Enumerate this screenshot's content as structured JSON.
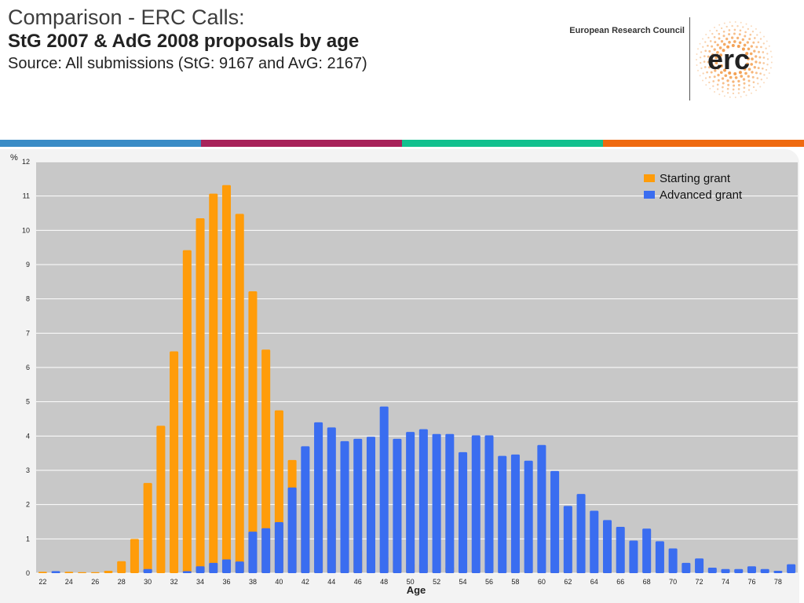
{
  "header": {
    "title_line1": "Comparison - ERC Calls:",
    "title_line2": "StG 2007 & AdG 2008 proposals by age",
    "title_line3": "Source: All submissions (StG: 9167 and AvG: 2167)",
    "org_name": "European Research Council",
    "logo_text": "erc"
  },
  "colors": {
    "stripe_blue": "#3a8cc6",
    "stripe_magenta": "#a8235a",
    "stripe_teal": "#12c18f",
    "stripe_orange": "#ef6a10",
    "starting": "#ff9c0a",
    "advanced": "#3a6df0",
    "plot_bg": "#c8c8c8"
  },
  "chart_data": {
    "type": "bar",
    "ylabel": "%",
    "xlabel": "Age",
    "ylim": [
      0,
      12
    ],
    "yticks": [
      0,
      1,
      2,
      3,
      4,
      5,
      6,
      7,
      8,
      9,
      10,
      11,
      12
    ],
    "xticks": [
      22,
      24,
      26,
      28,
      30,
      32,
      34,
      36,
      38,
      40,
      42,
      44,
      46,
      48,
      50,
      52,
      54,
      56,
      58,
      60,
      62,
      64,
      66,
      68,
      70,
      72,
      74,
      76,
      78
    ],
    "grid": true,
    "legend_position": "top-right",
    "categories": [
      22,
      23,
      24,
      25,
      26,
      27,
      28,
      29,
      30,
      31,
      32,
      33,
      34,
      35,
      36,
      37,
      38,
      39,
      40,
      41,
      42,
      43,
      44,
      45,
      46,
      47,
      48,
      49,
      50,
      51,
      52,
      53,
      54,
      55,
      56,
      57,
      58,
      59,
      60,
      61,
      62,
      63,
      64,
      65,
      66,
      67,
      68,
      69,
      70,
      71,
      72,
      73,
      74,
      75,
      76,
      77,
      78,
      79
    ],
    "series": [
      {
        "name": "Starting grant",
        "values": [
          0.04,
          0.02,
          0.04,
          0.03,
          0.03,
          0.07,
          0.35,
          1.0,
          2.63,
          4.3,
          6.47,
          9.42,
          10.35,
          11.07,
          11.32,
          10.48,
          8.22,
          6.52,
          4.75,
          3.3,
          2.42,
          1.91,
          1.32,
          0.9,
          0.68,
          0.6,
          0.48,
          0.38,
          0.28,
          0.27,
          0.12,
          0.18,
          0.13,
          0.1,
          0.06,
          0.05,
          0.05,
          0.03,
          0.03,
          0.02,
          0.02,
          0.02,
          0.02,
          0.02,
          0.02,
          0.02,
          0.01,
          0,
          0,
          0,
          0,
          0,
          0,
          0,
          0,
          0,
          0,
          0
        ]
      },
      {
        "name": "Advanced grant",
        "values": [
          0,
          0.06,
          0,
          0,
          0,
          0,
          0,
          0,
          0.12,
          0,
          0,
          0.06,
          0.2,
          0.3,
          0.4,
          0.34,
          1.21,
          1.31,
          1.49,
          2.5,
          3.7,
          4.4,
          4.25,
          3.85,
          3.92,
          3.98,
          4.86,
          3.92,
          4.12,
          4.2,
          4.06,
          4.06,
          3.53,
          4.02,
          4.02,
          3.42,
          3.46,
          3.28,
          3.74,
          2.98,
          1.96,
          2.31,
          1.82,
          1.55,
          1.35,
          0.95,
          1.3,
          0.93,
          0.72,
          0.3,
          0.43,
          0.16,
          0.12,
          0.12,
          0.2,
          0.12,
          0.07,
          0.26
        ]
      }
    ]
  }
}
